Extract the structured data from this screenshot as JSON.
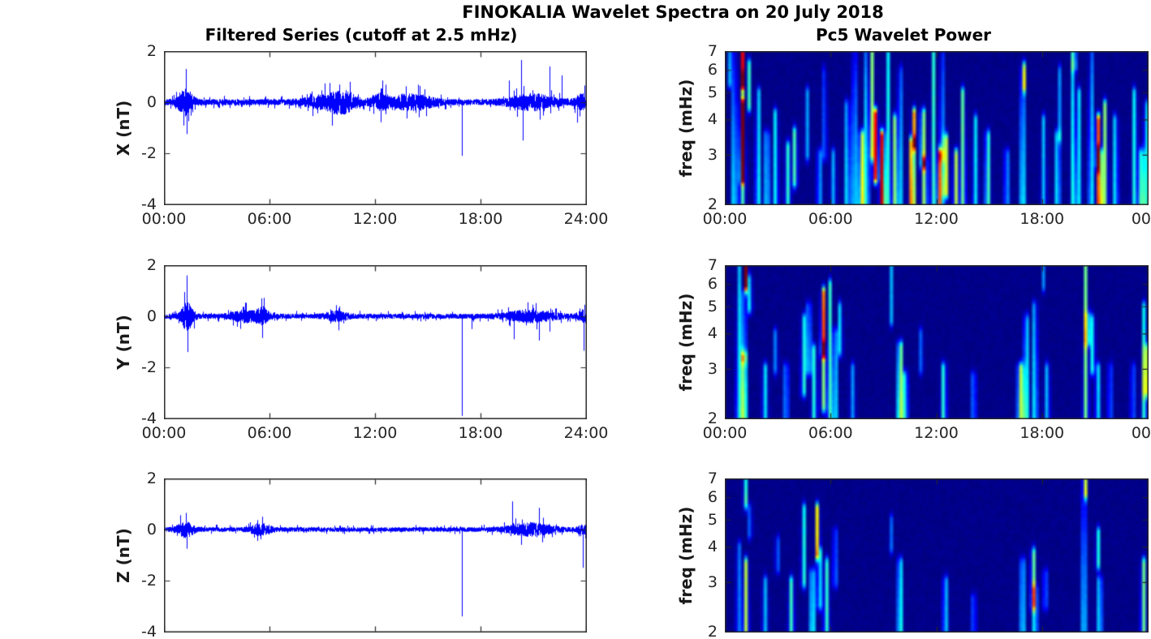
{
  "figure": {
    "title": "FINOKALIA Wavelet Spectra on 20 July 2018"
  },
  "columns": {
    "left_title": "Filtered Series (cutoff at 2.5 mHz)",
    "right_title": "Pc5 Wavelet Power"
  },
  "colors": {
    "background": "#FFFFFF",
    "trace": "#0000FF",
    "axis": "#262626",
    "tick_label": "#262626",
    "heatmap_low": "#00008F",
    "colormap": "jet"
  },
  "chart_data": [
    {
      "id": "series-x",
      "type": "line",
      "ylabel": "X (nT)",
      "ylim": [
        -4,
        2
      ],
      "ytick_values": [
        2,
        0,
        -2,
        -4
      ],
      "yticks": [
        "2",
        "0",
        "-2",
        "-4"
      ],
      "x_range_hours": [
        0,
        24
      ],
      "xtick_hours": [
        0,
        6,
        12,
        18,
        24
      ],
      "xticks": [
        "00:00",
        "06:00",
        "12:00",
        "18:00",
        "24:00"
      ],
      "show_xtick_labels": true,
      "noise_base": 0.12,
      "bursts_t_w_amp": [
        [
          1.2,
          0.45,
          0.45
        ],
        [
          9.3,
          1.3,
          0.22
        ],
        [
          10.2,
          0.7,
          0.25
        ],
        [
          12.3,
          0.5,
          0.25
        ],
        [
          13.6,
          0.8,
          0.18
        ],
        [
          14.6,
          0.9,
          0.16
        ],
        [
          20.9,
          1.3,
          0.24
        ],
        [
          23.7,
          0.35,
          0.22
        ]
      ],
      "spikes_t_nT": [
        [
          1.25,
          1.3
        ],
        [
          1.3,
          -1.25
        ],
        [
          9.4,
          0.75
        ],
        [
          12.4,
          0.85
        ],
        [
          16.95,
          -2.1
        ],
        [
          19.6,
          0.85
        ],
        [
          20.3,
          1.65
        ],
        [
          20.4,
          -1.5
        ],
        [
          21.9,
          1.4
        ],
        [
          22.6,
          1.05
        ],
        [
          23.5,
          -0.8
        ],
        [
          23.9,
          0.65
        ]
      ]
    },
    {
      "id": "wavelet-x",
      "type": "heatmap",
      "ylabel": "freq (mHz)",
      "yscale": "log",
      "ylim_mhz": [
        2,
        7
      ],
      "ytick_values": [
        7,
        6,
        5,
        4,
        3,
        2
      ],
      "yticks": [
        "7",
        "6",
        "5",
        "4",
        "3",
        "2"
      ],
      "x_range_hours": [
        0,
        24
      ],
      "xtick_hours": [
        0,
        6,
        12,
        18,
        24
      ],
      "xticks": [
        "00:00",
        "06:00",
        "12:00",
        "18:00",
        "00"
      ],
      "show_xtick_labels": true,
      "streaks_t_f1_f2_power_width": [
        [
          0.15,
          5.5,
          7,
          0.35,
          0.05
        ],
        [
          0.45,
          2,
          7,
          0.45,
          0.05
        ],
        [
          0.95,
          5.5,
          7,
          1.0,
          0.08
        ],
        [
          0.9,
          2.5,
          4.5,
          0.8,
          0.08
        ],
        [
          0.9,
          2,
          5.5,
          0.45,
          0.1
        ],
        [
          1.3,
          4.5,
          6.3,
          0.42,
          0.06
        ],
        [
          1.8,
          2,
          5,
          0.4,
          0.08
        ],
        [
          2.3,
          2,
          3.5,
          0.42,
          0.1
        ],
        [
          2.8,
          2,
          4.2,
          0.38,
          0.09
        ],
        [
          3.5,
          2,
          3.2,
          0.4,
          0.1
        ],
        [
          3.9,
          2.4,
          3.6,
          0.45,
          0.07
        ],
        [
          4.6,
          3,
          5,
          0.28,
          0.08
        ],
        [
          5.3,
          2,
          3,
          0.3,
          0.09
        ],
        [
          5.6,
          3,
          6,
          0.26,
          0.06
        ],
        [
          6.1,
          2,
          3,
          0.28,
          0.08
        ],
        [
          6.9,
          2,
          4.5,
          0.42,
          0.08
        ],
        [
          7.3,
          2,
          7,
          0.45,
          0.06
        ],
        [
          7.7,
          2,
          3.5,
          0.7,
          0.09
        ],
        [
          8.0,
          2,
          7,
          0.45,
          0.05
        ],
        [
          8.3,
          3,
          7,
          0.5,
          0.06
        ],
        [
          8.5,
          2.5,
          4.2,
          0.85,
          0.14
        ],
        [
          8.9,
          2,
          3.5,
          1.0,
          0.12
        ],
        [
          9.2,
          2,
          7,
          0.42,
          0.05
        ],
        [
          9.6,
          2,
          4,
          0.5,
          0.07
        ],
        [
          9.9,
          2,
          6,
          0.4,
          0.06
        ],
        [
          10.6,
          2,
          3.3,
          1.0,
          0.1
        ],
        [
          10.7,
          3.3,
          4.2,
          0.7,
          0.09
        ],
        [
          11.2,
          2.8,
          4.2,
          0.7,
          0.08
        ],
        [
          11.3,
          2,
          2.8,
          0.55,
          0.07
        ],
        [
          11.8,
          2,
          7,
          0.42,
          0.05
        ],
        [
          12.2,
          2,
          3,
          0.78,
          0.15
        ],
        [
          12.5,
          2.2,
          3.4,
          0.68,
          0.1
        ],
        [
          12.3,
          3,
          7,
          0.38,
          0.05
        ],
        [
          13.1,
          2,
          3,
          0.55,
          0.08
        ],
        [
          13.5,
          2,
          5,
          0.48,
          0.08
        ],
        [
          14.2,
          2,
          4,
          0.35,
          0.07
        ],
        [
          14.9,
          2,
          3.5,
          0.5,
          0.08
        ],
        [
          16.0,
          2,
          3,
          0.3,
          0.08
        ],
        [
          16.9,
          2,
          6,
          0.48,
          0.07
        ],
        [
          17.0,
          5.3,
          6.2,
          0.45,
          0.05
        ],
        [
          18.1,
          2,
          4,
          0.3,
          0.06
        ],
        [
          18.9,
          2,
          3.5,
          0.42,
          0.07
        ],
        [
          19.0,
          3.5,
          6,
          0.26,
          0.05
        ],
        [
          19.8,
          2,
          7,
          0.42,
          0.05
        ],
        [
          19.85,
          6.3,
          7,
          0.85,
          0.06
        ],
        [
          20.1,
          2,
          5,
          0.35,
          0.05
        ],
        [
          20.8,
          2,
          7,
          0.42,
          0.05
        ],
        [
          21.2,
          2.8,
          4,
          0.85,
          0.13
        ],
        [
          21.3,
          2,
          3,
          1.0,
          0.11
        ],
        [
          21.6,
          2,
          4.5,
          0.5,
          0.09
        ],
        [
          22.2,
          2,
          4,
          0.38,
          0.06
        ],
        [
          23.3,
          2,
          5,
          0.42,
          0.07
        ],
        [
          23.7,
          2,
          3,
          0.55,
          0.08
        ],
        [
          23.95,
          2,
          4.5,
          0.45,
          0.07
        ]
      ]
    },
    {
      "id": "series-y",
      "type": "line",
      "ylabel": "Y (nT)",
      "ylim": [
        -4,
        2
      ],
      "ytick_values": [
        2,
        0,
        -2,
        -4
      ],
      "yticks": [
        "2",
        "0",
        "-2",
        "-4"
      ],
      "x_range_hours": [
        0,
        24
      ],
      "xtick_hours": [
        0,
        6,
        12,
        18,
        24
      ],
      "xticks": [
        "00:00",
        "06:00",
        "12:00",
        "18:00",
        "24:00"
      ],
      "show_xtick_labels": true,
      "noise_base": 0.1,
      "bursts_t_w_amp": [
        [
          1.3,
          0.35,
          0.5
        ],
        [
          4.7,
          0.9,
          0.18
        ],
        [
          5.6,
          0.3,
          0.25
        ],
        [
          9.8,
          0.6,
          0.15
        ],
        [
          20.8,
          1.4,
          0.18
        ],
        [
          23.8,
          0.3,
          0.18
        ]
      ],
      "spikes_t_nT": [
        [
          1.3,
          1.6
        ],
        [
          1.35,
          -1.4
        ],
        [
          5.55,
          0.7
        ],
        [
          5.6,
          -0.85
        ],
        [
          9.9,
          -0.55
        ],
        [
          16.95,
          -3.9
        ],
        [
          17.5,
          -0.5
        ],
        [
          19.9,
          -0.9
        ],
        [
          21.3,
          -0.95
        ],
        [
          21.9,
          -0.6
        ],
        [
          23.85,
          -1.35
        ],
        [
          23.9,
          0.45
        ]
      ]
    },
    {
      "id": "wavelet-y",
      "type": "heatmap",
      "ylabel": "freq (mHz)",
      "yscale": "log",
      "ylim_mhz": [
        2,
        7
      ],
      "ytick_values": [
        7,
        6,
        5,
        4,
        3,
        2
      ],
      "yticks": [
        "7",
        "6",
        "5",
        "4",
        "3",
        "2"
      ],
      "x_range_hours": [
        0,
        24
      ],
      "xtick_hours": [
        0,
        6,
        12,
        18,
        24
      ],
      "xticks": [
        "00:00",
        "06:00",
        "12:00",
        "18:00",
        "00"
      ],
      "show_xtick_labels": true,
      "streaks_t_f1_f2_power_width": [
        [
          0.7,
          2,
          7,
          0.4,
          0.05
        ],
        [
          1.0,
          2,
          3.3,
          0.72,
          0.09
        ],
        [
          1.0,
          3.3,
          5.5,
          0.45,
          0.07
        ],
        [
          1.1,
          6,
          7,
          1.0,
          0.08
        ],
        [
          1.35,
          5,
          6.3,
          0.55,
          0.06
        ],
        [
          2.2,
          2,
          3,
          0.35,
          0.08
        ],
        [
          2.8,
          3,
          4,
          0.26,
          0.05
        ],
        [
          3.4,
          2,
          3,
          0.3,
          0.09
        ],
        [
          4.4,
          2.5,
          4.5,
          0.42,
          0.09
        ],
        [
          4.7,
          3,
          5,
          0.48,
          0.09
        ],
        [
          5.0,
          2,
          3.5,
          0.4,
          0.07
        ],
        [
          5.5,
          3.5,
          5.6,
          0.92,
          0.09
        ],
        [
          5.55,
          2.2,
          3.5,
          0.5,
          0.07
        ],
        [
          5.9,
          2,
          6,
          0.42,
          0.05
        ],
        [
          6.2,
          2,
          4,
          0.42,
          0.07
        ],
        [
          6.5,
          3.5,
          5,
          0.38,
          0.06
        ],
        [
          7.2,
          2,
          3,
          0.26,
          0.07
        ],
        [
          9.4,
          4.5,
          7,
          0.3,
          0.05
        ],
        [
          9.9,
          2,
          3.6,
          0.68,
          0.09
        ],
        [
          10.2,
          2,
          2.8,
          0.42,
          0.07
        ],
        [
          11.1,
          3,
          4,
          0.22,
          0.06
        ],
        [
          12.4,
          2,
          3,
          0.42,
          0.07
        ],
        [
          14.1,
          2,
          2.8,
          0.26,
          0.08
        ],
        [
          16.8,
          2,
          3,
          0.55,
          0.18
        ],
        [
          17.1,
          2,
          4.5,
          0.48,
          0.08
        ],
        [
          17.6,
          2,
          5,
          0.42,
          0.05
        ],
        [
          18.1,
          6,
          7,
          0.26,
          0.04
        ],
        [
          18.3,
          2,
          3,
          0.3,
          0.07
        ],
        [
          20.5,
          2,
          7,
          0.48,
          0.06
        ],
        [
          20.6,
          3.8,
          4.6,
          0.58,
          0.06
        ],
        [
          20.9,
          3,
          4.5,
          0.42,
          0.07
        ],
        [
          21.2,
          2,
          3,
          0.35,
          0.08
        ],
        [
          21.9,
          2,
          3,
          0.22,
          0.06
        ],
        [
          23.2,
          2,
          3,
          0.22,
          0.06
        ],
        [
          23.85,
          2,
          5,
          0.42,
          0.07
        ],
        [
          23.95,
          2.5,
          3.5,
          0.58,
          0.08
        ]
      ]
    },
    {
      "id": "series-z",
      "type": "line",
      "ylabel": "Z (nT)",
      "ylim": [
        -4,
        2
      ],
      "ytick_values": [
        2,
        0,
        -2,
        -4
      ],
      "yticks": [
        "2",
        "0",
        "-2",
        "-4"
      ],
      "x_range_hours": [
        0,
        24
      ],
      "xtick_hours": [
        0,
        6,
        12,
        18,
        24
      ],
      "xticks": [],
      "show_xtick_labels": false,
      "noise_base": 0.09,
      "bursts_t_w_amp": [
        [
          1.2,
          0.5,
          0.25
        ],
        [
          5.5,
          0.6,
          0.18
        ],
        [
          20.8,
          1.3,
          0.2
        ],
        [
          23.8,
          0.3,
          0.12
        ]
      ],
      "spikes_t_nT": [
        [
          1.25,
          0.65
        ],
        [
          1.3,
          -0.75
        ],
        [
          5.6,
          0.5
        ],
        [
          16.95,
          -3.4
        ],
        [
          19.8,
          1.1
        ],
        [
          20.3,
          -0.6
        ],
        [
          21.3,
          0.85
        ],
        [
          21.5,
          -0.5
        ],
        [
          23.8,
          -1.5
        ]
      ]
    },
    {
      "id": "wavelet-z",
      "type": "heatmap",
      "ylabel": "freq (mHz)",
      "yscale": "log",
      "ylim_mhz": [
        2,
        7
      ],
      "ytick_values": [
        7,
        6,
        5,
        4,
        3,
        2
      ],
      "yticks": [
        "7",
        "6",
        "5",
        "4",
        "3",
        "2"
      ],
      "x_range_hours": [
        0,
        24
      ],
      "xtick_hours": [
        0,
        6,
        12,
        18,
        24
      ],
      "xticks": [],
      "show_xtick_labels": false,
      "streaks_t_f1_f2_power_width": [
        [
          0.7,
          2,
          4,
          0.26,
          0.05
        ],
        [
          1.05,
          5.8,
          7,
          0.72,
          0.08
        ],
        [
          1.1,
          2,
          3.5,
          0.55,
          0.09
        ],
        [
          1.35,
          4.5,
          5.5,
          0.3,
          0.06
        ],
        [
          2.2,
          2,
          3,
          0.3,
          0.08
        ],
        [
          2.9,
          3.4,
          4.2,
          0.26,
          0.06
        ],
        [
          3.7,
          2,
          3,
          0.42,
          0.07
        ],
        [
          4.4,
          3,
          5.5,
          0.42,
          0.08
        ],
        [
          4.9,
          2,
          3.2,
          0.48,
          0.08
        ],
        [
          5.2,
          3.8,
          5.5,
          0.7,
          0.09
        ],
        [
          5.3,
          2.5,
          3.8,
          0.4,
          0.07
        ],
        [
          5.7,
          2,
          3.5,
          0.42,
          0.07
        ],
        [
          6.2,
          3,
          4.5,
          0.3,
          0.07
        ],
        [
          9.4,
          4,
          5,
          0.22,
          0.06
        ],
        [
          9.9,
          2,
          3.5,
          0.48,
          0.08
        ],
        [
          12.5,
          2,
          3,
          0.35,
          0.07
        ],
        [
          14.1,
          2,
          2.6,
          0.22,
          0.08
        ],
        [
          16.9,
          2,
          3.5,
          0.42,
          0.08
        ],
        [
          17.5,
          2.5,
          3.8,
          0.52,
          0.08
        ],
        [
          17.6,
          2,
          2.8,
          0.42,
          0.08
        ],
        [
          18.2,
          2.5,
          3.2,
          0.26,
          0.06
        ],
        [
          20.4,
          2,
          7,
          0.42,
          0.05
        ],
        [
          20.45,
          6.3,
          7,
          0.68,
          0.05
        ],
        [
          21.2,
          3.5,
          4.5,
          0.42,
          0.07
        ],
        [
          21.3,
          2,
          3,
          0.4,
          0.08
        ],
        [
          23.8,
          2,
          3.5,
          0.48,
          0.08
        ]
      ]
    }
  ]
}
